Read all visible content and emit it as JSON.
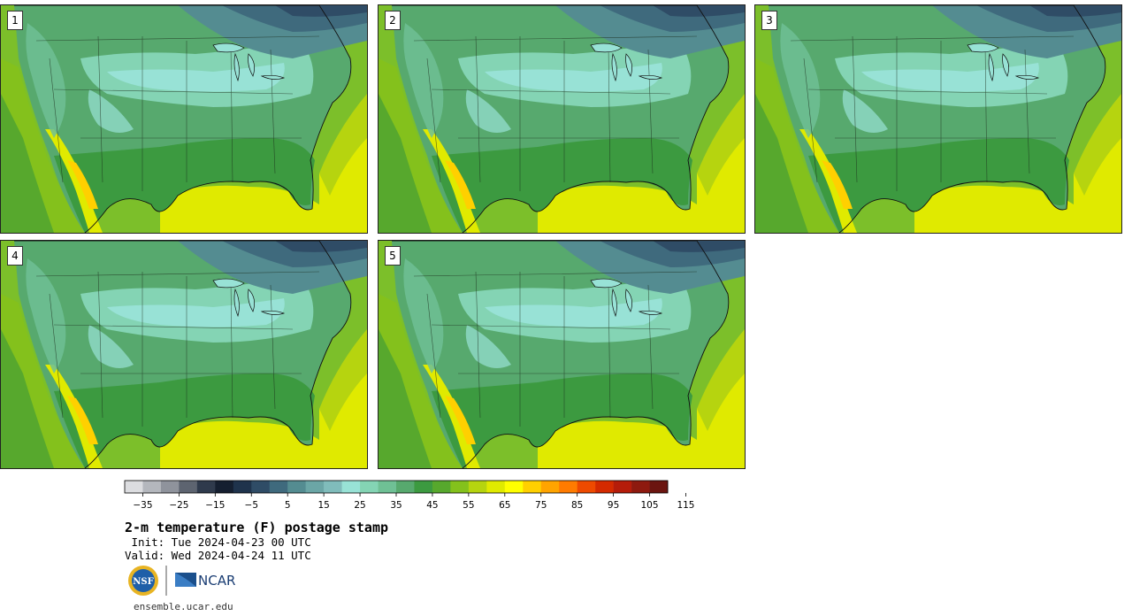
{
  "stamps": [
    {
      "label": "1"
    },
    {
      "label": "2"
    },
    {
      "label": "3"
    },
    {
      "label": "4"
    },
    {
      "label": "5"
    }
  ],
  "colorbar": {
    "tick_labels": [
      "−35",
      "−25",
      "−15",
      "−5",
      "5",
      "15",
      "25",
      "35",
      "45",
      "55",
      "65",
      "75",
      "85",
      "95",
      "105",
      "115"
    ],
    "colors": [
      "#dcdde0",
      "#b4b7bd",
      "#8f939c",
      "#5d6470",
      "#2f3a4c",
      "#151f30",
      "#1f334c",
      "#2f4c66",
      "#3f6a7d",
      "#548c91",
      "#6ba6a6",
      "#80bcbb",
      "#98e2d6",
      "#84d4b4",
      "#6fc095",
      "#57a96e",
      "#3c9a40",
      "#57a82d",
      "#84c11c",
      "#b6d40f",
      "#e0ea00",
      "#ffff00",
      "#ffd000",
      "#ffa400",
      "#ff7b00",
      "#ee4a00",
      "#d42a00",
      "#b51c0a",
      "#8e1a0f",
      "#6b1510"
    ],
    "min": -40,
    "step": 5
  },
  "caption": {
    "title": "2-m temperature (F) postage stamp",
    "init": " Init: Tue 2024-04-23 00 UTC",
    "valid": "Valid: Wed 2024-04-24 11 UTC"
  },
  "logos": {
    "nsf_text": "NSF",
    "ncar_text": "NCAR"
  },
  "footer": {
    "url": "ensemble.ucar.edu"
  }
}
